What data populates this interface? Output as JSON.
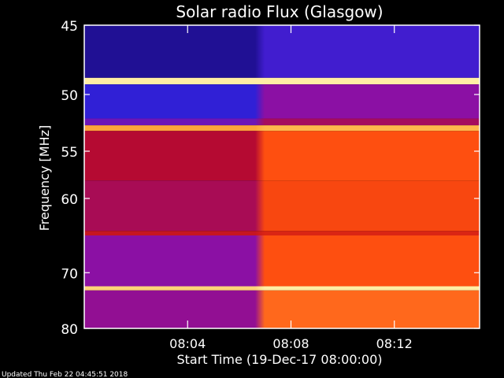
{
  "chart_data": {
    "type": "heatmap",
    "title": "Solar radio Flux (Glasgow)",
    "xlabel": "Start Time (19-Dec-17 08:00:00)",
    "ylabel": "Frequency [MHz]",
    "x_unit": "minutes",
    "x_range": [
      0,
      15.3
    ],
    "x_ticks": [
      {
        "value": 4,
        "label": "08:04"
      },
      {
        "value": 8,
        "label": "08:08"
      },
      {
        "value": 12,
        "label": "08:12"
      }
    ],
    "y_range": [
      45,
      80
    ],
    "y_scale": "reciprocal",
    "y_ticks": [
      {
        "value": 45,
        "label": "45"
      },
      {
        "value": 50,
        "label": "50"
      },
      {
        "value": 55,
        "label": "55"
      },
      {
        "value": 60,
        "label": "60"
      },
      {
        "value": 70,
        "label": "70"
      },
      {
        "value": 80,
        "label": "80"
      }
    ],
    "colormap": [
      "#1a0a7a",
      "#3020d8",
      "#8a10a8",
      "#b80a2a",
      "#e02a10",
      "#ff5010",
      "#ffb040",
      "#ffffc0"
    ],
    "transition_minute": 6.8,
    "before_level": 0.28,
    "after_level": 0.74,
    "bands": [
      {
        "f_min": 45,
        "f_max": 48.7,
        "before": 0.04,
        "after": 0.17
      },
      {
        "f_min": 48.7,
        "f_max": 49.2,
        "before": 0.97,
        "after": 0.97
      },
      {
        "f_min": 49.2,
        "f_max": 52,
        "before": 0.14,
        "after": 0.29
      },
      {
        "f_min": 52,
        "f_max": 52.6,
        "before": 0.24,
        "after": 0.37
      },
      {
        "f_min": 52.6,
        "f_max": 53.1,
        "before": 0.84,
        "after": 0.87
      },
      {
        "f_min": 53.1,
        "f_max": 58,
        "before": 0.42,
        "after": 0.71
      },
      {
        "f_min": 58,
        "f_max": 64,
        "before": 0.38,
        "after": 0.68
      },
      {
        "f_min": 64,
        "f_max": 64.6,
        "before": 0.48,
        "after": 0.55
      },
      {
        "f_min": 64.6,
        "f_max": 72.2,
        "before": 0.29,
        "after": 0.71
      },
      {
        "f_min": 72.2,
        "f_max": 72.9,
        "before": 0.92,
        "after": 0.97
      },
      {
        "f_min": 72.9,
        "f_max": 80,
        "before": 0.31,
        "after": 0.75
      }
    ],
    "grid": false,
    "legend": "none"
  },
  "footer": {
    "updated": "Updated Thu Feb 22 04:45:51 2018"
  }
}
